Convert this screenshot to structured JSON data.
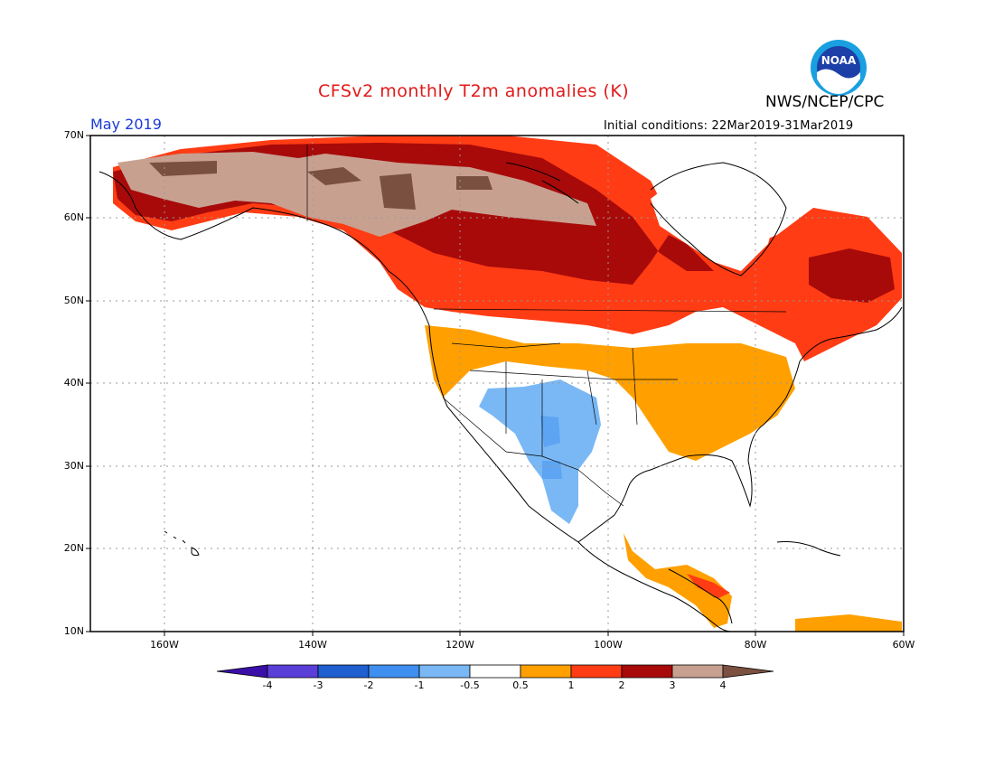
{
  "header": {
    "title": "CFSv2 monthly T2m anomalies (K)",
    "period": "May 2019",
    "organization": "NWS/NCEP/CPC",
    "initial_conditions": "Initial conditions: 22Mar2019-31Mar2019",
    "logo_text": "NOAA"
  },
  "axes": {
    "lat_ticks": [
      "70N",
      "60N",
      "50N",
      "40N",
      "30N",
      "20N",
      "10N"
    ],
    "lon_ticks": [
      "160W",
      "140W",
      "120W",
      "100W",
      "80W",
      "60W"
    ]
  },
  "colorbar": {
    "labels": [
      "-4",
      "-3",
      "-2",
      "-1",
      "-0.5",
      "0.5",
      "1",
      "2",
      "3",
      "4"
    ],
    "colors": [
      "#3a0fa8",
      "#5a3ed8",
      "#1f5fd0",
      "#3f8ff0",
      "#7ab8f5",
      "#ffffff",
      "#ffa000",
      "#ff3c14",
      "#a80a0a",
      "#c8a090",
      "#7a5040"
    ]
  },
  "colors": {
    "ocean": "#ffffff",
    "grid": "#9a9a9a",
    "coast": "#000000"
  }
}
